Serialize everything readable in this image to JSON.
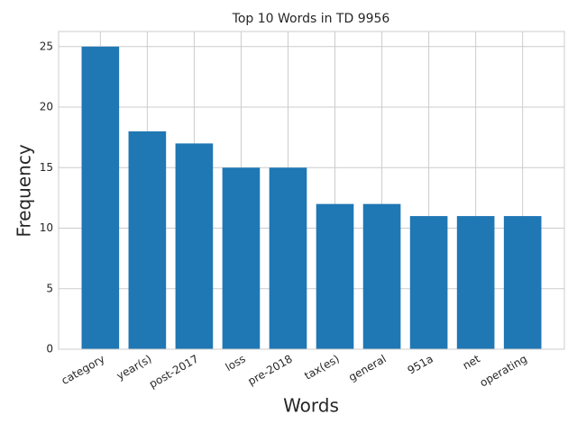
{
  "chart_data": {
    "type": "bar",
    "title": "Top 10 Words in TD 9956",
    "x_label": "Words",
    "y_label": "Frequency",
    "categories": [
      "category",
      "year(s)",
      "post-2017",
      "loss",
      "pre-2018",
      "tax(es)",
      "general",
      "951a",
      "net",
      "operating"
    ],
    "values": [
      25,
      18,
      17,
      15,
      15,
      12,
      12,
      11,
      11,
      11
    ],
    "color": "#1f77b4",
    "ylim": [
      0,
      26.25
    ],
    "yticks": [
      0,
      5,
      10,
      15,
      20,
      25
    ],
    "grid": true
  }
}
